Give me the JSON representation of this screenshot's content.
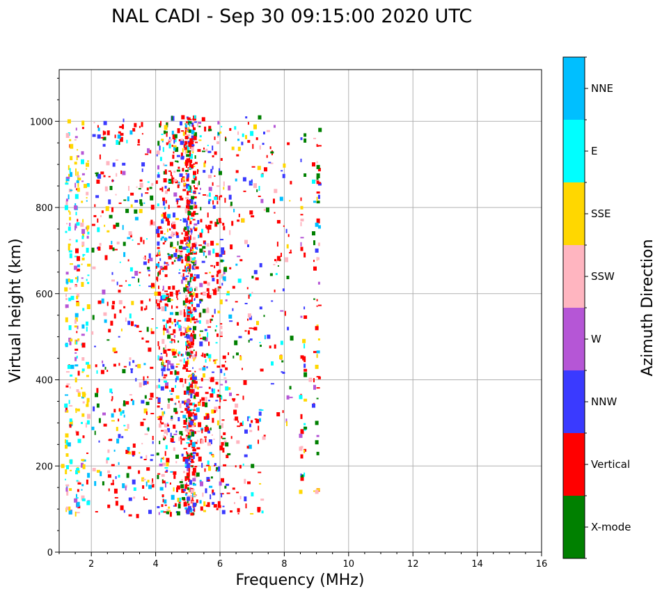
{
  "chart_data": {
    "type": "scatter",
    "title": "NAL CADI - Sep 30 09:15:00 2020 UTC",
    "xlabel": "Frequency (MHz)",
    "ylabel": "Virtual height (km)",
    "xlim": [
      1,
      16
    ],
    "ylim": [
      0,
      1120
    ],
    "xticks": [
      2,
      4,
      6,
      8,
      10,
      12,
      14,
      16
    ],
    "yticks": [
      0,
      200,
      400,
      600,
      800,
      1000
    ],
    "grid": true,
    "colorbar": {
      "label": "Azimuth Direction",
      "categories": [
        {
          "name": "X-mode",
          "color": "#008000"
        },
        {
          "name": "Vertical",
          "color": "#ff0000"
        },
        {
          "name": "NNW",
          "color": "#3a3aff"
        },
        {
          "name": "W",
          "color": "#b556d6"
        },
        {
          "name": "SSW",
          "color": "#ffb5c0"
        },
        {
          "name": "SSE",
          "color": "#ffd700"
        },
        {
          "name": "E",
          "color": "#00ffff"
        },
        {
          "name": "NNE",
          "color": "#00bfff"
        }
      ]
    },
    "series": [
      {
        "name": "X-mode",
        "points": [
          [
            5.0,
            460
          ],
          [
            5.2,
            520
          ],
          [
            4.6,
            330
          ],
          [
            5.4,
            700
          ],
          [
            9.0,
            300
          ],
          [
            9.0,
            255
          ],
          [
            5.1,
            800
          ],
          [
            4.9,
            610
          ],
          [
            6.2,
            250
          ],
          [
            5.3,
            180
          ],
          [
            4.7,
            90
          ],
          [
            3.0,
            420
          ],
          [
            5.0,
            380
          ],
          [
            8.9,
            740
          ],
          [
            9.1,
            980
          ],
          [
            6.0,
            880
          ],
          [
            4.4,
            500
          ],
          [
            5.5,
            560
          ],
          [
            2.8,
            760
          ],
          [
            7.0,
            200
          ]
        ]
      },
      {
        "name": "Vertical",
        "points": [
          [
            4.3,
            660
          ],
          [
            5.0,
            540
          ],
          [
            4.8,
            720
          ],
          [
            3.8,
            470
          ],
          [
            6.7,
            770
          ],
          [
            8.6,
            450
          ],
          [
            9.0,
            520
          ],
          [
            7.8,
            320
          ],
          [
            5.9,
            690
          ],
          [
            4.5,
            260
          ],
          [
            3.3,
            230
          ],
          [
            4.1,
            600
          ],
          [
            5.2,
            880
          ],
          [
            2.2,
            860
          ],
          [
            7.2,
            100
          ],
          [
            6.5,
            310
          ],
          [
            5.0,
            180
          ],
          [
            3.9,
            620
          ],
          [
            4.7,
            150
          ],
          [
            8.9,
            900
          ]
        ]
      },
      {
        "name": "NNW",
        "points": [
          [
            5.0,
            500
          ],
          [
            4.9,
            770
          ],
          [
            5.1,
            300
          ],
          [
            8.9,
            340
          ],
          [
            9.0,
            700
          ],
          [
            4.6,
            690
          ],
          [
            5.3,
            640
          ],
          [
            4.2,
            380
          ],
          [
            6.8,
            280
          ],
          [
            7.1,
            650
          ],
          [
            5.0,
            200
          ],
          [
            4.8,
            950
          ],
          [
            3.6,
            900
          ],
          [
            5.2,
            110
          ],
          [
            7.5,
            500
          ]
        ]
      },
      {
        "name": "W",
        "points": [
          [
            1.5,
            800
          ],
          [
            1.5,
            120
          ],
          [
            4.4,
            440
          ],
          [
            5.0,
            350
          ],
          [
            4.6,
            830
          ],
          [
            8.5,
            270
          ],
          [
            3.0,
            880
          ],
          [
            5.4,
            620
          ],
          [
            1.5,
            660
          ]
        ]
      },
      {
        "name": "SSW",
        "points": [
          [
            8.8,
            400
          ],
          [
            9.0,
            140
          ],
          [
            8.5,
            240
          ],
          [
            4.3,
            280
          ],
          [
            5.5,
            600
          ],
          [
            6.8,
            720
          ],
          [
            3.2,
            740
          ],
          [
            2.9,
            580
          ],
          [
            1.7,
            760
          ],
          [
            5.6,
            560
          ],
          [
            6.5,
            340
          ]
        ]
      },
      {
        "name": "SSE",
        "points": [
          [
            1.2,
            610
          ],
          [
            1.1,
            200
          ],
          [
            8.5,
            140
          ],
          [
            9.0,
            430
          ],
          [
            8.6,
            490
          ],
          [
            6.7,
            770
          ],
          [
            4.0,
            600
          ],
          [
            2.7,
            470
          ],
          [
            1.8,
            850
          ],
          [
            1.3,
            1000
          ]
        ]
      },
      {
        "name": "E",
        "points": [
          [
            1.3,
            430
          ],
          [
            1.2,
            340
          ],
          [
            6.2,
            380
          ],
          [
            8.5,
            360
          ],
          [
            8.9,
            860
          ],
          [
            5.0,
            700
          ],
          [
            1.4,
            590
          ],
          [
            6.6,
            630
          ]
        ]
      },
      {
        "name": "NNE",
        "points": [
          [
            1.3,
            250
          ],
          [
            7.9,
            820
          ],
          [
            9.0,
            760
          ],
          [
            5.3,
            330
          ],
          [
            1.4,
            430
          ],
          [
            4.4,
            780
          ]
        ]
      }
    ]
  }
}
